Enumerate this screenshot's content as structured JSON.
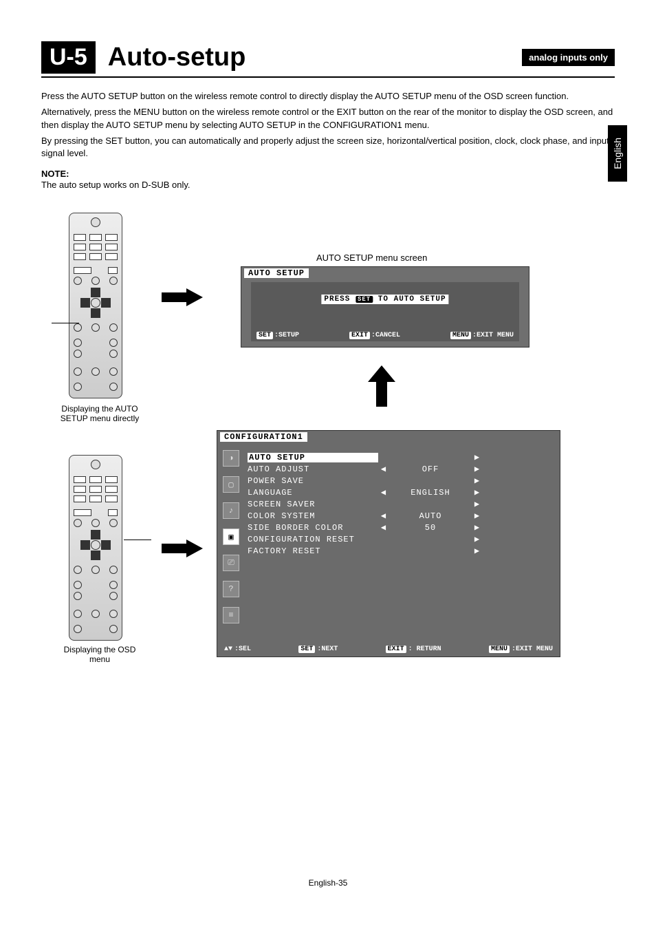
{
  "header": {
    "section_code": "U-5",
    "title": "Auto-setup",
    "badge": "analog inputs only"
  },
  "lang_tab": "English",
  "body": {
    "p1": "Press the AUTO SETUP button on the wireless remote control to directly display the AUTO SETUP menu of the OSD screen function.",
    "p2": "Alternatively, press the MENU button on the wireless remote control or the EXIT button on the rear of the monitor to display the OSD screen, and then display the AUTO SETUP menu by selecting AUTO SETUP in the CONFIGURATION1 menu.",
    "p3": "By pressing the SET button, you can automatically and properly adjust the screen size, horizontal/vertical position, clock, clock phase, and input signal level.",
    "note_label": "NOTE:",
    "note_text": "The auto setup works on D-SUB only."
  },
  "captions": {
    "remote_top": "Displaying the AUTO SETUP menu directly",
    "remote_bottom": "Displaying the OSD menu",
    "osd1": "AUTO SETUP menu screen"
  },
  "osd1": {
    "title": "AUTO SETUP",
    "press_prefix": "PRESS",
    "press_btn": "SET",
    "press_suffix": "TO AUTO SETUP",
    "footer": {
      "set_tag": "SET",
      "set_text": ":SETUP",
      "exit_tag": "EXIT",
      "exit_text": ":CANCEL",
      "menu_tag": "MENU",
      "menu_text": ":EXIT MENU"
    }
  },
  "osd2": {
    "title": "CONFIGURATION1",
    "rows": [
      {
        "label": "AUTO SETUP",
        "left": "",
        "value": "",
        "right": "▶",
        "highlight": true
      },
      {
        "label": "AUTO ADJUST",
        "left": "◀",
        "value": "OFF",
        "right": "▶"
      },
      {
        "label": "POWER SAVE",
        "left": "",
        "value": "",
        "right": "▶"
      },
      {
        "label": "LANGUAGE",
        "left": "◀",
        "value": "ENGLISH",
        "right": "▶"
      },
      {
        "label": "SCREEN SAVER",
        "left": "",
        "value": "",
        "right": "▶"
      },
      {
        "label": "COLOR SYSTEM",
        "left": "◀",
        "value": "AUTO",
        "right": "▶"
      },
      {
        "label": "SIDE BORDER COLOR",
        "left": "◀",
        "value": "50",
        "right": "▶"
      },
      {
        "label": "CONFIGURATION RESET",
        "left": "",
        "value": "",
        "right": "▶"
      },
      {
        "label": "FACTORY RESET",
        "left": "",
        "value": "",
        "right": "▶"
      }
    ],
    "footer": {
      "sel_icon": "▲▼",
      "sel_text": ":SEL",
      "set_tag": "SET",
      "set_text": ":NEXT",
      "exit_tag": "EXIT",
      "exit_text": ": RETURN",
      "menu_tag": "MENU",
      "menu_text": ":EXIT MENU"
    }
  },
  "page_footer": "English-35",
  "colors": {
    "osd_bg": "#6f6f6f",
    "osd_inner": "#5a5a5a",
    "text": "#000000",
    "white": "#ffffff"
  }
}
